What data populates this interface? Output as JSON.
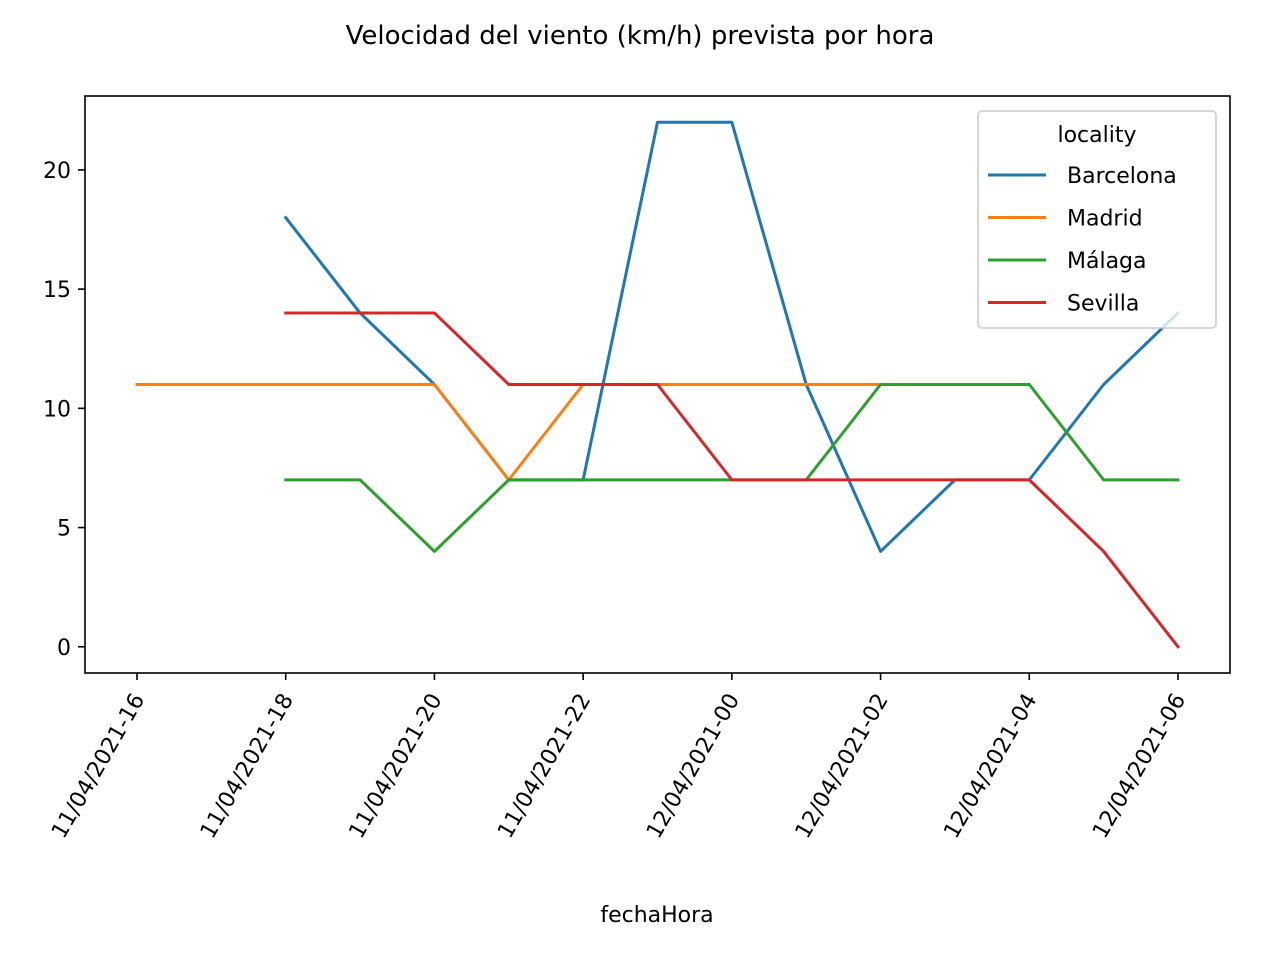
{
  "chart_data": {
    "type": "line",
    "title": "Velocidad del viento (km/h) prevista por hora",
    "xlabel": "fechaHora",
    "ylabel": "",
    "x": [
      "11/04/2021-16",
      "11/04/2021-17",
      "11/04/2021-18",
      "11/04/2021-19",
      "11/04/2021-20",
      "11/04/2021-21",
      "11/04/2021-22",
      "11/04/2021-23",
      "12/04/2021-00",
      "12/04/2021-01",
      "12/04/2021-02",
      "12/04/2021-03",
      "12/04/2021-04",
      "12/04/2021-05",
      "12/04/2021-06"
    ],
    "x_tick_labels": [
      "11/04/2021-16",
      "11/04/2021-18",
      "11/04/2021-20",
      "11/04/2021-22",
      "12/04/2021-00",
      "12/04/2021-02",
      "12/04/2021-04",
      "12/04/2021-06"
    ],
    "y_ticks": [
      0,
      5,
      10,
      15,
      20
    ],
    "ylim": [
      -1.1,
      23.1
    ],
    "grid": false,
    "legend": {
      "title": "locality",
      "placement": "top-right"
    },
    "series": [
      {
        "name": "Barcelona",
        "color": "#1f77b4",
        "values": [
          null,
          null,
          18,
          14,
          11,
          7,
          7,
          22,
          22,
          11,
          4,
          7,
          7,
          11,
          14
        ]
      },
      {
        "name": "Madrid",
        "color": "#ff7f0e",
        "values": [
          11,
          11,
          11,
          11,
          11,
          7,
          11,
          11,
          11,
          11,
          11,
          11,
          11,
          null,
          null
        ]
      },
      {
        "name": "Málaga",
        "color": "#2ca02c",
        "values": [
          null,
          null,
          7,
          7,
          4,
          7,
          7,
          7,
          7,
          7,
          11,
          11,
          11,
          7,
          7
        ]
      },
      {
        "name": "Sevilla",
        "color": "#d62728",
        "values": [
          null,
          null,
          14,
          14,
          14,
          11,
          11,
          11,
          7,
          7,
          7,
          7,
          7,
          4,
          0
        ]
      }
    ]
  }
}
